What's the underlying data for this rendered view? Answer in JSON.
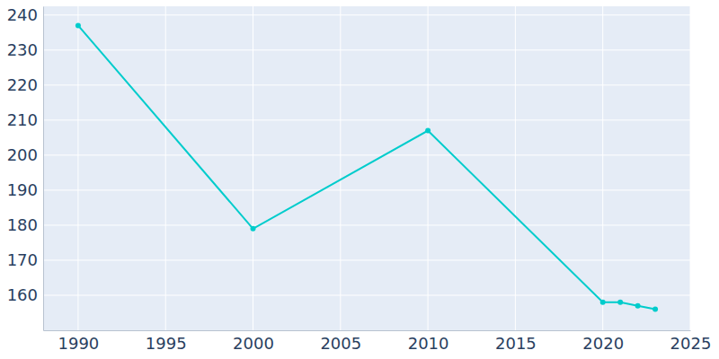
{
  "chart_data": {
    "type": "line",
    "x": [
      1990,
      2000,
      2010,
      2020,
      2021,
      2022,
      2023
    ],
    "values": [
      237,
      179,
      207,
      158,
      158,
      157,
      156
    ],
    "color": "#00cccc",
    "marker": "circle",
    "xlim": [
      1988,
      2025
    ],
    "xticks": [
      1990,
      1995,
      2000,
      2005,
      2010,
      2015,
      2020,
      2025
    ],
    "ylim": [
      150,
      242.5
    ],
    "yticks": [
      160,
      170,
      180,
      190,
      200,
      210,
      220,
      230,
      240
    ],
    "grid": true
  }
}
